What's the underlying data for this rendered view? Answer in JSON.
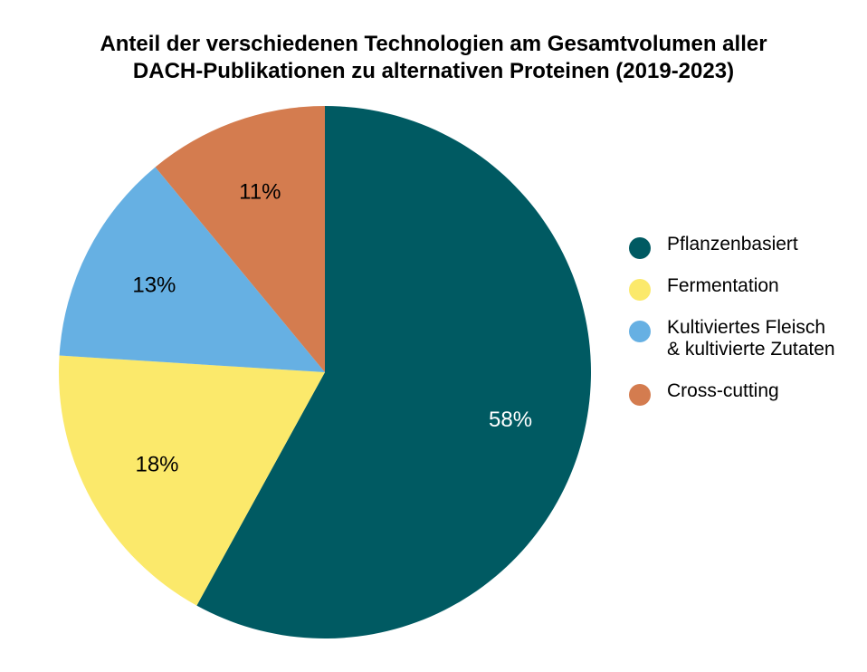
{
  "chart_data": {
    "type": "pie",
    "title": "Anteil der verschiedenen Technologien am Gesamtvolumen aller DACH-Publikationen zu alternativen Proteinen (2019-2023)",
    "title_lines": [
      "Anteil der verschiedenen Technologien am Gesamtvolumen aller",
      "DACH-Publikationen zu alternativen Proteinen (2019-2023)"
    ],
    "slices": [
      {
        "label": "Pflanzenbasiert",
        "value": 58,
        "display": "58%",
        "color": "#005a62",
        "label_color": "#ffffff"
      },
      {
        "label": "Fermentation",
        "value": 18,
        "display": "18%",
        "color": "#fbe96b",
        "label_color": "#000000"
      },
      {
        "label": "Kultiviertes Fleisch\n& kultivierte Zutaten",
        "value": 13,
        "display": "13%",
        "color": "#66b0e3",
        "label_color": "#000000"
      },
      {
        "label": "Cross-cutting",
        "value": 11,
        "display": "11%",
        "color": "#d47c4f",
        "label_color": "#000000"
      }
    ],
    "start_angle": "12 o'clock",
    "direction": "clockwise",
    "legend_position": "right"
  }
}
